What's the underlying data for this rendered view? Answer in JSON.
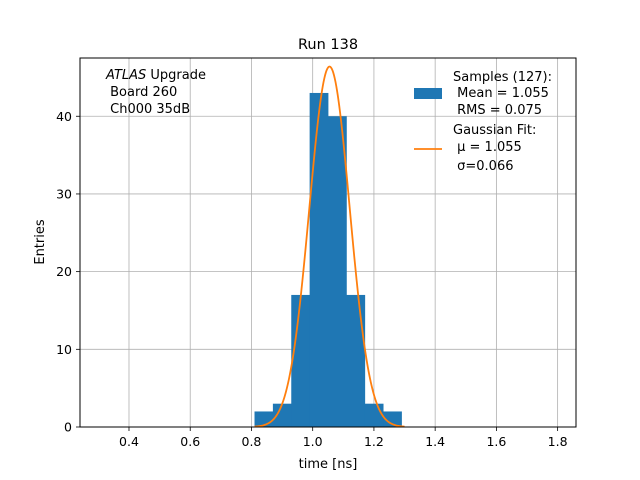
{
  "chart_data": {
    "type": "bar",
    "title": "Run 138",
    "xlabel": "time [ns]",
    "ylabel": "Entries",
    "xlim": [
      0.24,
      1.86
    ],
    "ylim": [
      0,
      47.5
    ],
    "xticks": [
      0.4,
      0.6,
      0.8,
      1.0,
      1.2,
      1.4,
      1.6,
      1.8
    ],
    "xtick_labels": [
      "0.4",
      "0.6",
      "0.8",
      "1.0",
      "1.2",
      "1.4",
      "1.6",
      "1.8"
    ],
    "yticks": [
      0,
      10,
      20,
      30,
      40
    ],
    "ytick_labels": [
      "0",
      "10",
      "20",
      "30",
      "40"
    ],
    "grid": true,
    "legend_position": "top-right",
    "annotation": {
      "line1_italic": "ATLAS",
      "line1_rest": " Upgrade",
      "line2": " Board 260",
      "line3": " Ch000 35dB"
    },
    "histogram": {
      "name_lines": [
        "Samples (127):",
        " Mean = 1.055",
        " RMS = 0.075"
      ],
      "color": "#1f77b4",
      "bins": [
        {
          "x0": 0.81,
          "x1": 0.87,
          "count": 2
        },
        {
          "x0": 0.87,
          "x1": 0.93,
          "count": 3
        },
        {
          "x0": 0.93,
          "x1": 0.99,
          "count": 17
        },
        {
          "x0": 0.99,
          "x1": 1.05,
          "count": 43
        },
        {
          "x0": 1.05,
          "x1": 1.11,
          "count": 40
        },
        {
          "x0": 1.11,
          "x1": 1.17,
          "count": 17
        },
        {
          "x0": 1.17,
          "x1": 1.23,
          "count": 3
        },
        {
          "x0": 1.23,
          "x1": 1.29,
          "count": 2
        }
      ]
    },
    "fit": {
      "name_lines": [
        "Gaussian Fit:",
        " μ = 1.055",
        " σ=0.066"
      ],
      "color": "#ff7f0e",
      "mu": 1.055,
      "sigma": 0.066,
      "amplitude": 46.4,
      "x_range": [
        0.81,
        1.3
      ]
    }
  }
}
